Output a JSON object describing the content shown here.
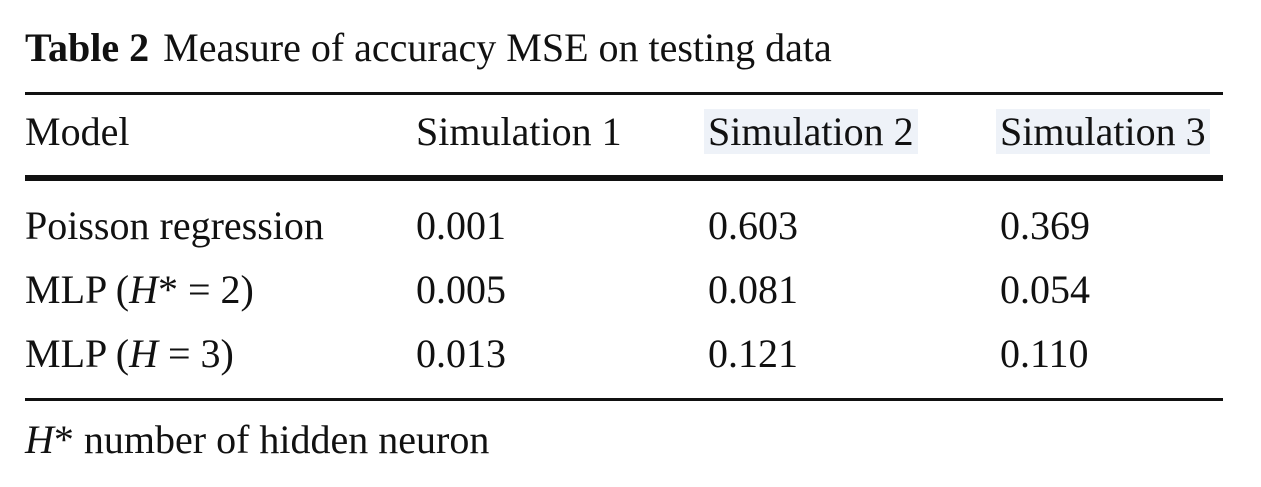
{
  "caption": {
    "label": "Table 2",
    "title": "Measure of accuracy MSE on testing data"
  },
  "table": {
    "headers": [
      "Model",
      "Simulation 1",
      "Simulation 2",
      "Simulation 3"
    ],
    "rows": [
      {
        "model": {
          "prefix": "Poisson regression",
          "var": "",
          "suffix": ""
        },
        "values": [
          "0.001",
          "0.603",
          "0.369"
        ]
      },
      {
        "model": {
          "prefix": "MLP (",
          "var": "H",
          "suffix": "* = 2)"
        },
        "values": [
          "0.005",
          "0.081",
          "0.054"
        ]
      },
      {
        "model": {
          "prefix": "MLP (",
          "var": "H",
          "suffix": " = 3)"
        },
        "values": [
          "0.013",
          "0.121",
          "0.110"
        ]
      }
    ]
  },
  "footnote": {
    "var": "H",
    "text": "* number of hidden neuron"
  }
}
